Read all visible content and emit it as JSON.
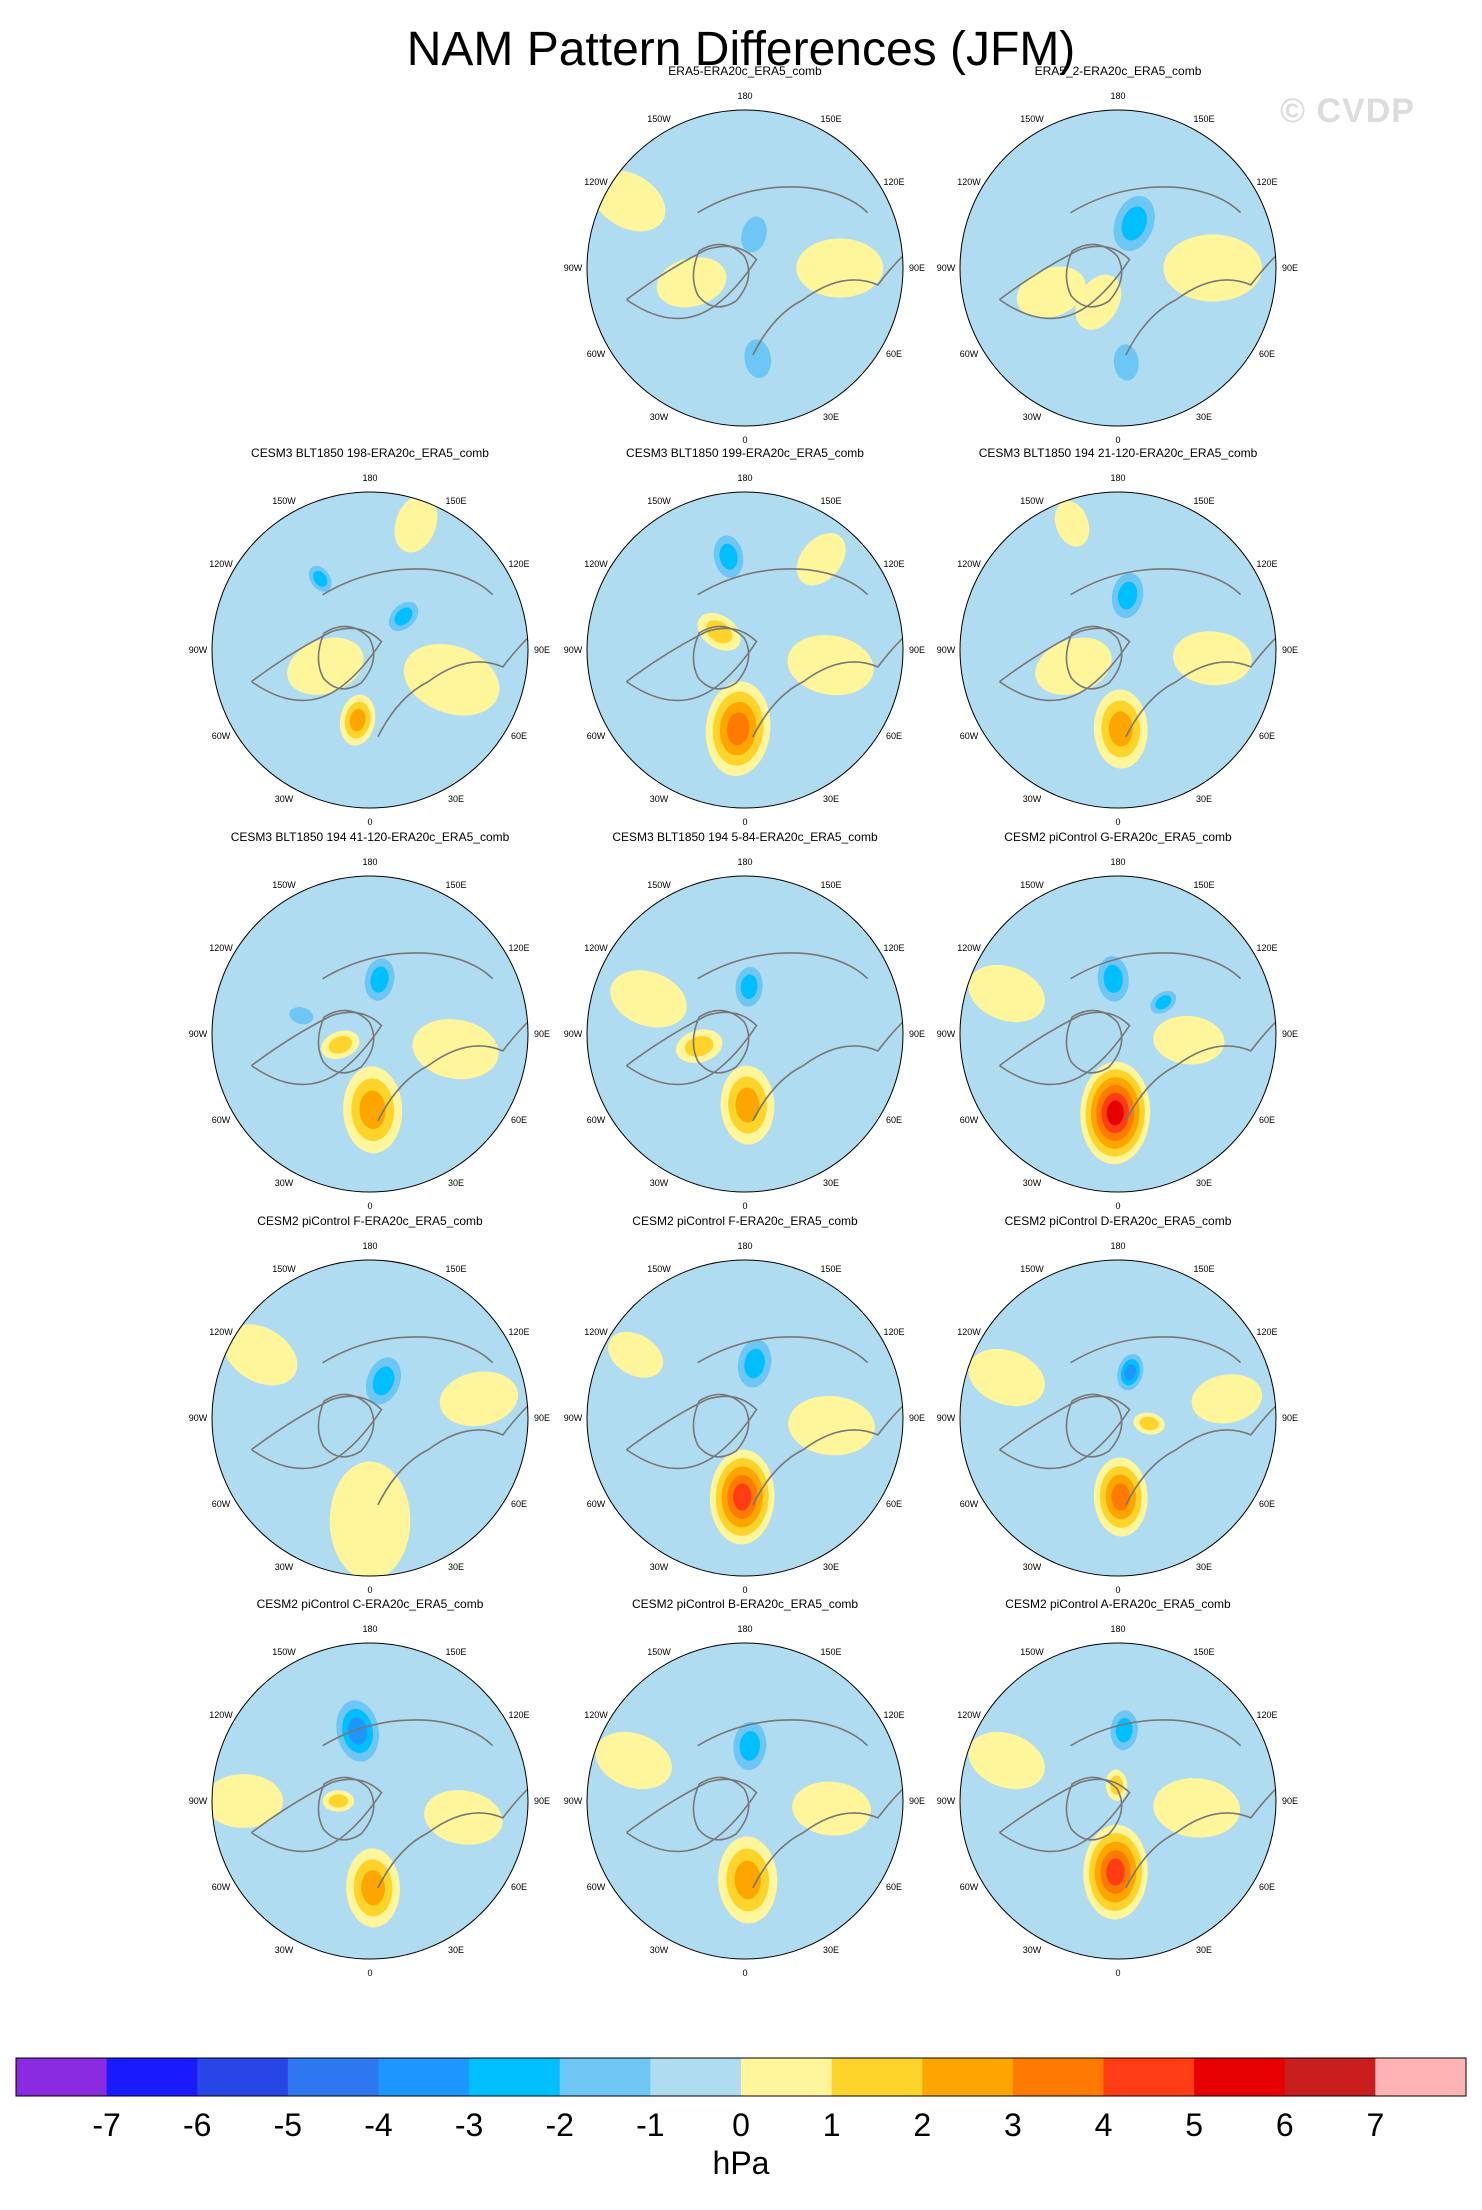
{
  "figure": {
    "title": "NAM Pattern Differences (JFM)",
    "watermark": "© CVDP"
  },
  "chart_data": {
    "type": "heatmap",
    "projection": "north-polar-stereographic",
    "variable": "NAM pattern difference",
    "units": "hPa",
    "longitude_labels": [
      "180",
      "150E",
      "120E",
      "90E",
      "60E",
      "30E",
      "0",
      "30W",
      "60W",
      "90W",
      "120W",
      "150W"
    ],
    "colorbar": {
      "label": "hPa",
      "ticks": [
        "-7",
        "-6",
        "-5",
        "-4",
        "-3",
        "-2",
        "-1",
        "0",
        "1",
        "2",
        "3",
        "4",
        "5",
        "6",
        "7"
      ],
      "colors": [
        "#8a2be2",
        "#1a1aff",
        "#2846e6",
        "#2d78ef",
        "#1e96ff",
        "#00bfff",
        "#6ec6f4",
        "#b0dcf2",
        "#fff59a",
        "#ffd42a",
        "#ffa500",
        "#ff7a00",
        "#ff3c14",
        "#e60000",
        "#c81e1e",
        "#ffb4b4"
      ]
    },
    "panels": [
      {
        "title": "ERA5-ERA20c_ERA5_comb",
        "row": 0,
        "col": 1,
        "features": [
          {
            "lon": 172,
            "r": 0.58,
            "value": -2,
            "size": 0.16
          },
          {
            "lon": 15,
            "r": 0.22,
            "value": -1.5,
            "size": 0.15
          },
          {
            "lon": 90,
            "r": 0.6,
            "value": 0.5,
            "size": 0.22
          },
          {
            "lon": -105,
            "r": 0.35,
            "value": 0.5,
            "size": 0.18
          },
          {
            "lon": -60,
            "r": 0.85,
            "value": 0.5,
            "size": 0.2
          }
        ]
      },
      {
        "title": "ERA5_2-ERA20c_ERA5_comb",
        "row": 0,
        "col": 2,
        "features": [
          {
            "lon": 175,
            "r": 0.6,
            "value": -2,
            "size": 0.15
          },
          {
            "lon": 20,
            "r": 0.3,
            "value": -2.5,
            "size": 0.2
          },
          {
            "lon": -150,
            "r": 0.25,
            "value": 1,
            "size": 0.15
          },
          {
            "lon": 90,
            "r": 0.6,
            "value": 0.5,
            "size": 0.25
          },
          {
            "lon": -110,
            "r": 0.45,
            "value": 0.5,
            "size": 0.18
          }
        ]
      },
      {
        "title": "CESM3 BLT1850 198-ERA20c_ERA5_comb",
        "row": 1,
        "col": 0,
        "features": [
          {
            "lon": -170,
            "r": 0.45,
            "value": 3,
            "size": 0.13
          },
          {
            "lon": 45,
            "r": 0.3,
            "value": -2.5,
            "size": 0.12
          },
          {
            "lon": -35,
            "r": 0.55,
            "value": -2.5,
            "size": 0.1
          },
          {
            "lon": -110,
            "r": 0.3,
            "value": 0.5,
            "size": 0.2
          },
          {
            "lon": 110,
            "r": 0.55,
            "value": 0.5,
            "size": 0.25
          },
          {
            "lon": 20,
            "r": 0.85,
            "value": 0.5,
            "size": 0.15
          }
        ]
      },
      {
        "title": "CESM3 BLT1850 199-ERA20c_ERA5_comb",
        "row": 1,
        "col": 1,
        "features": [
          {
            "lon": -175,
            "r": 0.5,
            "value": 3.5,
            "size": 0.24
          },
          {
            "lon": -55,
            "r": 0.2,
            "value": 2,
            "size": 0.12
          },
          {
            "lon": -10,
            "r": 0.6,
            "value": -2.5,
            "size": 0.15
          },
          {
            "lon": 100,
            "r": 0.55,
            "value": 0.5,
            "size": 0.22
          },
          {
            "lon": 40,
            "r": 0.75,
            "value": 0.5,
            "size": 0.15
          }
        ]
      },
      {
        "title": "CESM3 BLT1850 194 21-120-ERA20c_ERA5_comb",
        "row": 1,
        "col": 2,
        "features": [
          {
            "lon": 178,
            "r": 0.5,
            "value": 2.5,
            "size": 0.2
          },
          {
            "lon": 10,
            "r": 0.35,
            "value": -2.5,
            "size": 0.16
          },
          {
            "lon": -110,
            "r": 0.3,
            "value": 0.5,
            "size": 0.2
          },
          {
            "lon": 95,
            "r": 0.6,
            "value": 0.5,
            "size": 0.2
          },
          {
            "lon": -20,
            "r": 0.85,
            "value": 0.5,
            "size": 0.12
          }
        ]
      },
      {
        "title": "CESM3 BLT1850 194 41-120-ERA20c_ERA5_comb",
        "row": 2,
        "col": 0,
        "features": [
          {
            "lon": 178,
            "r": 0.48,
            "value": 2.5,
            "size": 0.22
          },
          {
            "lon": 10,
            "r": 0.35,
            "value": -2.5,
            "size": 0.15
          },
          {
            "lon": -75,
            "r": 0.45,
            "value": -1.5,
            "size": 0.1
          },
          {
            "lon": -110,
            "r": 0.2,
            "value": 1.5,
            "size": 0.1
          },
          {
            "lon": 100,
            "r": 0.55,
            "value": 0.5,
            "size": 0.22
          }
        ]
      },
      {
        "title": "CESM3 BLT1850 194 5-84-ERA20c_ERA5_comb",
        "row": 2,
        "col": 1,
        "features": [
          {
            "lon": 178,
            "r": 0.45,
            "value": 2.5,
            "size": 0.2
          },
          {
            "lon": 5,
            "r": 0.3,
            "value": -2.5,
            "size": 0.14
          },
          {
            "lon": -105,
            "r": 0.3,
            "value": 1.5,
            "size": 0.12
          },
          {
            "lon": -70,
            "r": 0.65,
            "value": 0.5,
            "size": 0.2
          }
        ]
      },
      {
        "title": "CESM2 piControl G-ERA20c_ERA5_comb",
        "row": 2,
        "col": 2,
        "features": [
          {
            "lon": -178,
            "r": 0.5,
            "value": 5.5,
            "size": 0.26
          },
          {
            "lon": -5,
            "r": 0.35,
            "value": -3,
            "size": 0.16
          },
          {
            "lon": 55,
            "r": 0.35,
            "value": -2.5,
            "size": 0.1
          },
          {
            "lon": 95,
            "r": 0.45,
            "value": 0.5,
            "size": 0.18
          },
          {
            "lon": -70,
            "r": 0.75,
            "value": 0.5,
            "size": 0.2
          }
        ]
      },
      {
        "title": "CESM2 piControl F-ERA20c_ERA5_comb",
        "row": 3,
        "col": 0,
        "features": [
          {
            "lon": 20,
            "r": 0.25,
            "value": -3,
            "size": 0.17
          },
          {
            "lon": 180,
            "r": 0.65,
            "value": 0.5,
            "size": 0.3
          },
          {
            "lon": 80,
            "r": 0.7,
            "value": 0.5,
            "size": 0.2
          },
          {
            "lon": -60,
            "r": 0.8,
            "value": 0.5,
            "size": 0.2
          }
        ]
      },
      {
        "title": "CESM2 piControl F-ERA20c_ERA5_comb",
        "row": 3,
        "col": 1,
        "features": [
          {
            "lon": -178,
            "r": 0.5,
            "value": 4.5,
            "size": 0.24
          },
          {
            "lon": 10,
            "r": 0.35,
            "value": -3,
            "size": 0.17
          },
          {
            "lon": 95,
            "r": 0.55,
            "value": 0.5,
            "size": 0.22
          },
          {
            "lon": -60,
            "r": 0.8,
            "value": 0.5,
            "size": 0.15
          }
        ]
      },
      {
        "title": "CESM2 piControl D-ERA20c_ERA5_comb",
        "row": 3,
        "col": 2,
        "features": [
          {
            "lon": 178,
            "r": 0.5,
            "value": 3.5,
            "size": 0.2
          },
          {
            "lon": 15,
            "r": 0.3,
            "value": -3.5,
            "size": 0.12
          },
          {
            "lon": 100,
            "r": 0.2,
            "value": 1.5,
            "size": 0.08
          },
          {
            "lon": 80,
            "r": 0.7,
            "value": 0.5,
            "size": 0.18
          },
          {
            "lon": -70,
            "r": 0.75,
            "value": 0.5,
            "size": 0.2
          }
        ]
      },
      {
        "title": "CESM2 piControl C-ERA20c_ERA5_comb",
        "row": 4,
        "col": 0,
        "features": [
          {
            "lon": 178,
            "r": 0.55,
            "value": 2.5,
            "size": 0.2
          },
          {
            "lon": -10,
            "r": 0.45,
            "value": -3.5,
            "size": 0.2
          },
          {
            "lon": -90,
            "r": 0.2,
            "value": 1.5,
            "size": 0.08
          },
          {
            "lon": 100,
            "r": 0.6,
            "value": 0.5,
            "size": 0.2
          },
          {
            "lon": -90,
            "r": 0.8,
            "value": 0.5,
            "size": 0.2
          }
        ]
      },
      {
        "title": "CESM2 piControl B-ERA20c_ERA5_comb",
        "row": 4,
        "col": 1,
        "features": [
          {
            "lon": 178,
            "r": 0.5,
            "value": 3,
            "size": 0.22
          },
          {
            "lon": 5,
            "r": 0.35,
            "value": -3,
            "size": 0.17
          },
          {
            "lon": 95,
            "r": 0.55,
            "value": 0.5,
            "size": 0.2
          },
          {
            "lon": -70,
            "r": 0.75,
            "value": 0.5,
            "size": 0.2
          }
        ]
      },
      {
        "title": "CESM2 piControl A-ERA20c_ERA5_comb",
        "row": 4,
        "col": 2,
        "features": [
          {
            "lon": -178,
            "r": 0.45,
            "value": 4.5,
            "size": 0.24
          },
          {
            "lon": 5,
            "r": 0.45,
            "value": -3,
            "size": 0.14
          },
          {
            "lon": -5,
            "r": 0.1,
            "value": 1.5,
            "size": 0.08
          },
          {
            "lon": 95,
            "r": 0.5,
            "value": 0.5,
            "size": 0.22
          },
          {
            "lon": -70,
            "r": 0.75,
            "value": 0.5,
            "size": 0.2
          }
        ]
      }
    ]
  }
}
